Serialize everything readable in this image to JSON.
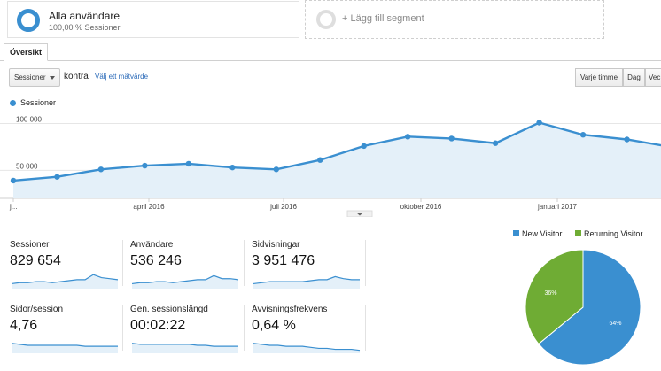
{
  "segments": {
    "active": {
      "title": "Alla användare",
      "subtitle": "100,00 % Sessioner"
    },
    "add_label": "+ Lägg till segment"
  },
  "tabs": [
    {
      "label": "Översikt",
      "selected": true
    }
  ],
  "controls": {
    "metric_select": "Sessioner",
    "versus_label": "kontra",
    "choose_metric_link": "Välj ett mätvärde",
    "range_buttons": [
      "Varje timme",
      "Dag",
      "Vec"
    ]
  },
  "colors": {
    "accent": "#3a8fd0",
    "new_visitor": "#3a8fd0",
    "returning_visitor": "#6fac34",
    "link": "#2a6ab8"
  },
  "chart_data": [
    {
      "type": "area",
      "legend": [
        "Sessioner"
      ],
      "y_tick_labels": [
        "100 000",
        "50 000"
      ],
      "x_tick_labels": [
        "j...",
        "april 2016",
        "juli 2016",
        "oktober 2016",
        "januari 2017"
      ],
      "ylim": [
        20000,
        110000
      ],
      "series": [
        {
          "name": "Sessioner",
          "values": [
            39000,
            43000,
            51000,
            55000,
            57000,
            53000,
            51000,
            61000,
            76000,
            86000,
            84000,
            79000,
            101000,
            88000,
            83000,
            75000
          ]
        }
      ]
    },
    {
      "type": "pie",
      "legend": [
        "New Visitor",
        "Returning Visitor"
      ],
      "values": [
        64,
        36
      ],
      "labels": [
        "64%",
        "36%"
      ]
    }
  ],
  "scorecards": [
    {
      "label": "Sessioner",
      "value": "829 654",
      "trend": [
        4,
        5,
        5,
        6,
        6,
        5,
        6,
        7,
        8,
        8,
        13,
        10,
        9,
        8
      ]
    },
    {
      "label": "Användare",
      "value": "536 246",
      "trend": [
        4,
        5,
        5,
        6,
        6,
        5,
        6,
        7,
        8,
        8,
        12,
        9,
        9,
        8
      ]
    },
    {
      "label": "Sidvisningar",
      "value": "3 951 476",
      "trend": [
        4,
        5,
        6,
        6,
        6,
        6,
        6,
        7,
        8,
        8,
        11,
        9,
        8,
        8
      ]
    },
    {
      "label": "Sidor/session",
      "value": "4,76",
      "trend": [
        9,
        8,
        7,
        7,
        7,
        7,
        7,
        7,
        7,
        6,
        6,
        6,
        6,
        6
      ]
    },
    {
      "label": "Gen. sessionslängd",
      "value": "00:02:22",
      "trend": [
        9,
        8,
        8,
        8,
        8,
        8,
        8,
        8,
        7,
        7,
        6,
        6,
        6,
        6
      ]
    },
    {
      "label": "Avvisningsfrekvens",
      "value": "0,64 %",
      "trend": [
        9,
        8,
        7,
        7,
        6,
        6,
        6,
        5,
        4,
        4,
        3,
        3,
        3,
        2
      ]
    }
  ]
}
